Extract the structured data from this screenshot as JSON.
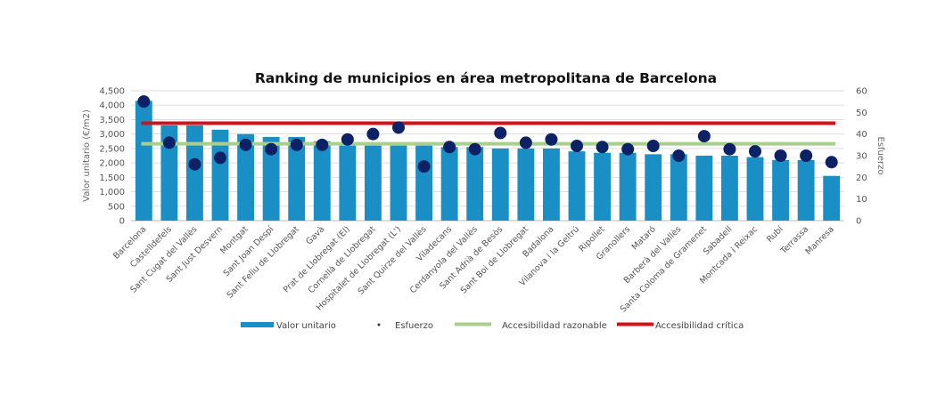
{
  "chart_data": {
    "type": "bar",
    "title": "Ranking de municipios en área metropolitana de Barcelona",
    "ylabel": "Valor unitario (€/m2)",
    "y2label": "Esfuerzo",
    "ylim": [
      0,
      4500
    ],
    "y2lim": [
      0,
      60
    ],
    "yticks": [
      "0",
      "500",
      "1,000",
      "1,500",
      "2,000",
      "2,500",
      "3,000",
      "3,500",
      "4,000",
      "4,500"
    ],
    "y2ticks": [
      "0",
      "10",
      "20",
      "30",
      "40",
      "50",
      "60"
    ],
    "grid": true,
    "legend_position": "bottom",
    "categories": [
      "Barcelona",
      "Castelldefels",
      "Sant Cugat del Vallès",
      "Sant Just Desvern",
      "Montgat",
      "Sant Joan Despí",
      "Sant Feliu de Llobregat",
      "Gavà",
      "Prat de Llobregat (El)",
      "Cornellà de Llobregat",
      "Hospitalet de Llobregat (L')",
      "Sant Quirze del Vallès",
      "Viladecans",
      "Cerdanyola del Vallès",
      "Sant Adrià de Besòs",
      "Sant Boi de Llobregat",
      "Badalona",
      "Vilanova i la Geltrú",
      "Ripollet",
      "Granollers",
      "Mataró",
      "Barberà del Vallès",
      "Santa Coloma de Gramenet",
      "Sabadell",
      "Montcada i Reixac",
      "Rubí",
      "Terrassa",
      "Manresa"
    ],
    "series": [
      {
        "name": "Valor unitario",
        "type": "bar",
        "axis": "left",
        "color": "#1a8fc6",
        "values": [
          4150,
          3300,
          3300,
          3150,
          3000,
          2900,
          2900,
          2750,
          2600,
          2600,
          2600,
          2600,
          2550,
          2550,
          2500,
          2500,
          2500,
          2400,
          2350,
          2350,
          2300,
          2300,
          2250,
          2250,
          2200,
          2100,
          2100,
          1550
        ]
      },
      {
        "name": "Esfuerzo",
        "type": "scatter",
        "axis": "right",
        "color": "#0d2266",
        "values": [
          55,
          36,
          26,
          29,
          35,
          33,
          35,
          35,
          37.5,
          40,
          43,
          25,
          34,
          33,
          40.5,
          36,
          37.5,
          34.5,
          34,
          33,
          34.5,
          30,
          39,
          33,
          32,
          30,
          30,
          27
        ]
      },
      {
        "name": "Accesibilidad razonable",
        "type": "line",
        "axis": "right",
        "color": "#a9cf8e",
        "value": 35.5
      },
      {
        "name": "Accesibilidad crítica",
        "type": "line",
        "axis": "right",
        "color": "#d0121b",
        "value": 45
      }
    ]
  }
}
